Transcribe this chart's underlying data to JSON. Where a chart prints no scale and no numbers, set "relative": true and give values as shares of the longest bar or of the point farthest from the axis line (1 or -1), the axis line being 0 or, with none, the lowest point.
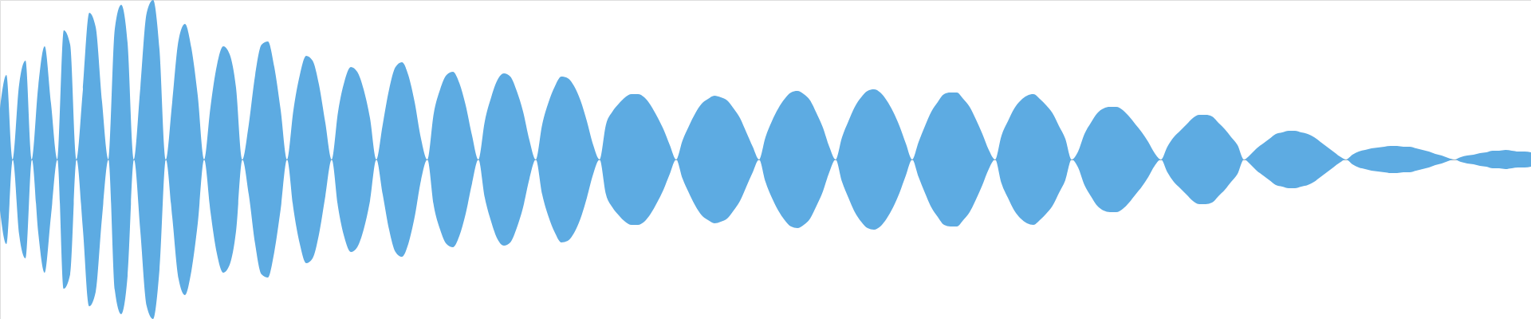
{
  "chart_data": {
    "type": "area",
    "relative": true,
    "categories": [
      null,
      null,
      null,
      null,
      null,
      null,
      null,
      null,
      null,
      null,
      null,
      null,
      null,
      null,
      null,
      null,
      null,
      null,
      null,
      null,
      null,
      null,
      null,
      null,
      null,
      null,
      null,
      null,
      null,
      null,
      null,
      null,
      null,
      null,
      null,
      null,
      null,
      null,
      null,
      null,
      null,
      null,
      null,
      null,
      null,
      null,
      null,
      null,
      null,
      null,
      null,
      null,
      null,
      null,
      null,
      null,
      null,
      null,
      null,
      null,
      null,
      null,
      null,
      null,
      null,
      null,
      null,
      null,
      null,
      null,
      null,
      null,
      null,
      null,
      null,
      null,
      null,
      null,
      null,
      null,
      null,
      null,
      null,
      null,
      null,
      null,
      null,
      null,
      null,
      null,
      null,
      null,
      null,
      null,
      null,
      null,
      null,
      null,
      null,
      null,
      null,
      null,
      null,
      null,
      null,
      null,
      null,
      null,
      null,
      null,
      null,
      null,
      null,
      null,
      null,
      null,
      null,
      null,
      null,
      null,
      null,
      null,
      null,
      null,
      null,
      null,
      null,
      null,
      null,
      null,
      null,
      null,
      null,
      null,
      null,
      null,
      null,
      null,
      null,
      null,
      null,
      null,
      null,
      null,
      null,
      null,
      null,
      null,
      null,
      null,
      null,
      null,
      null,
      null,
      null,
      null,
      null,
      null,
      null,
      null,
      null,
      null,
      null,
      null,
      null,
      null,
      null,
      null,
      null,
      null,
      null,
      null,
      null,
      null,
      null,
      null,
      null,
      null,
      null,
      null,
      null,
      null,
      null,
      null,
      null,
      null,
      null,
      null,
      null,
      null,
      null,
      null,
      null,
      null,
      null,
      null,
      null,
      null,
      null,
      null,
      null,
      null,
      null,
      null,
      null,
      null,
      null,
      null,
      null,
      null,
      null,
      null,
      null,
      null,
      null,
      null,
      null,
      null,
      null,
      null,
      null,
      null,
      null,
      null,
      null,
      null,
      null,
      null,
      null,
      null,
      null,
      null,
      null,
      null,
      null,
      null,
      null,
      null,
      null,
      null,
      null
    ],
    "series": [
      {
        "color": "#5dabe2",
        "values": [
          0.32,
          0.53,
          0,
          0.47,
          0.62,
          0,
          0.46,
          0.71,
          0.35,
          0,
          0.81,
          0.72,
          0,
          0.44,
          0.92,
          0.83,
          0.36,
          0,
          0.82,
          0.97,
          0.73,
          0,
          0.45,
          0.92,
          1,
          0.69,
          0,
          0.36,
          0.75,
          0.85,
          0.7,
          0.4,
          0,
          0.33,
          0.59,
          0.71,
          0.66,
          0.45,
          0,
          0.22,
          0.53,
          0.72,
          0.74,
          0.58,
          0.31,
          0,
          0.31,
          0.53,
          0.65,
          0.62,
          0.47,
          0.23,
          0,
          0.3,
          0.49,
          0.58,
          0.55,
          0.44,
          0.26,
          0,
          0.22,
          0.44,
          0.58,
          0.61,
          0.53,
          0.36,
          0.13,
          0,
          0.29,
          0.44,
          0.53,
          0.55,
          0.48,
          0.34,
          0.15,
          0,
          0.24,
          0.39,
          0.5,
          0.54,
          0.52,
          0.43,
          0.3,
          0.12,
          0,
          0.22,
          0.36,
          0.46,
          0.52,
          0.51,
          0.46,
          0.37,
          0.24,
          0.09,
          0,
          0.22,
          0.3,
          0.35,
          0.39,
          0.41,
          0.41,
          0.39,
          0.34,
          0.27,
          0.19,
          0.09,
          0,
          0.12,
          0.21,
          0.29,
          0.35,
          0.38,
          0.4,
          0.39,
          0.37,
          0.32,
          0.26,
          0.17,
          0.08,
          0,
          0.14,
          0.24,
          0.32,
          0.38,
          0.42,
          0.43,
          0.41,
          0.37,
          0.29,
          0.2,
          0.08,
          0,
          0.14,
          0.24,
          0.33,
          0.39,
          0.43,
          0.44,
          0.42,
          0.37,
          0.3,
          0.21,
          0.1,
          0,
          0.11,
          0.21,
          0.3,
          0.36,
          0.41,
          0.42,
          0.42,
          0.38,
          0.33,
          0.25,
          0.16,
          0.06,
          0,
          0.15,
          0.24,
          0.32,
          0.37,
          0.4,
          0.41,
          0.38,
          0.34,
          0.29,
          0.21,
          0.13,
          0,
          0.05,
          0.16,
          0.23,
          0.29,
          0.32,
          0.33,
          0.33,
          0.31,
          0.27,
          0.22,
          0.17,
          0.11,
          0.04,
          0,
          0.08,
          0.14,
          0.18,
          0.22,
          0.26,
          0.28,
          0.28,
          0.27,
          0.23,
          0.19,
          0.14,
          0.09,
          0,
          0.03,
          0.07,
          0.1,
          0.13,
          0.16,
          0.17,
          0.18,
          0.18,
          0.17,
          0.16,
          0.14,
          0.11,
          0.08,
          0.05,
          0.02,
          0,
          0.03,
          0.05,
          0.06,
          0.07,
          0.075,
          0.08,
          0.085,
          0.085,
          0.08,
          0.08,
          0.07,
          0.06,
          0.05,
          0.035,
          0.025,
          0.01,
          0,
          0.015,
          0.025,
          0.03,
          0.04,
          0.045,
          0.055,
          0.055,
          0.06,
          0.055,
          0.05,
          0.05,
          0.045
        ]
      },
      {
        "color": "#5dabe2",
        "values": [
          -0.32,
          -0.53,
          0,
          -0.47,
          -0.62,
          0,
          -0.46,
          -0.71,
          -0.35,
          0,
          -0.81,
          -0.72,
          0,
          -0.44,
          -0.92,
          -0.83,
          -0.36,
          0,
          -0.82,
          -0.97,
          -0.73,
          0,
          -0.45,
          -0.92,
          -1,
          -0.69,
          0,
          -0.36,
          -0.75,
          -0.85,
          -0.7,
          -0.4,
          0,
          -0.33,
          -0.59,
          -0.71,
          -0.66,
          -0.45,
          0,
          -0.22,
          -0.53,
          -0.72,
          -0.74,
          -0.58,
          -0.31,
          0,
          -0.31,
          -0.53,
          -0.65,
          -0.62,
          -0.47,
          -0.23,
          0,
          -0.3,
          -0.49,
          -0.58,
          -0.55,
          -0.44,
          -0.26,
          0,
          -0.22,
          -0.44,
          -0.58,
          -0.61,
          -0.53,
          -0.36,
          -0.13,
          0,
          -0.29,
          -0.44,
          -0.53,
          -0.55,
          -0.48,
          -0.34,
          -0.15,
          0,
          -0.24,
          -0.39,
          -0.5,
          -0.54,
          -0.52,
          -0.43,
          -0.3,
          -0.12,
          0,
          -0.22,
          -0.36,
          -0.46,
          -0.52,
          -0.51,
          -0.46,
          -0.37,
          -0.24,
          -0.09,
          0,
          -0.22,
          -0.3,
          -0.35,
          -0.39,
          -0.41,
          -0.41,
          -0.39,
          -0.34,
          -0.27,
          -0.19,
          -0.09,
          0,
          -0.12,
          -0.21,
          -0.29,
          -0.35,
          -0.38,
          -0.4,
          -0.39,
          -0.37,
          -0.32,
          -0.26,
          -0.17,
          -0.08,
          0,
          -0.14,
          -0.24,
          -0.32,
          -0.38,
          -0.42,
          -0.43,
          -0.41,
          -0.37,
          -0.29,
          -0.2,
          -0.08,
          0,
          -0.14,
          -0.24,
          -0.33,
          -0.39,
          -0.43,
          -0.44,
          -0.42,
          -0.37,
          -0.3,
          -0.21,
          -0.1,
          0,
          -0.11,
          -0.21,
          -0.3,
          -0.36,
          -0.41,
          -0.42,
          -0.42,
          -0.38,
          -0.33,
          -0.25,
          -0.16,
          -0.06,
          0,
          -0.15,
          -0.24,
          -0.32,
          -0.37,
          -0.4,
          -0.41,
          -0.38,
          -0.34,
          -0.29,
          -0.21,
          -0.13,
          0,
          -0.05,
          -0.16,
          -0.23,
          -0.29,
          -0.32,
          -0.33,
          -0.33,
          -0.31,
          -0.27,
          -0.22,
          -0.17,
          -0.11,
          -0.04,
          0,
          -0.08,
          -0.14,
          -0.18,
          -0.22,
          -0.26,
          -0.28,
          -0.28,
          -0.27,
          -0.23,
          -0.19,
          -0.14,
          -0.09,
          0,
          -0.03,
          -0.07,
          -0.1,
          -0.13,
          -0.16,
          -0.17,
          -0.18,
          -0.18,
          -0.17,
          -0.16,
          -0.14,
          -0.11,
          -0.08,
          -0.05,
          -0.02,
          0,
          -0.03,
          -0.05,
          -0.06,
          -0.07,
          -0.075,
          -0.08,
          -0.085,
          -0.085,
          -0.08,
          -0.08,
          -0.07,
          -0.06,
          -0.05,
          -0.035,
          -0.025,
          -0.01,
          0,
          -0.015,
          -0.025,
          -0.03,
          -0.04,
          -0.045,
          -0.055,
          -0.055,
          -0.06,
          -0.055,
          -0.05,
          -0.05,
          -0.045
        ]
      }
    ]
  }
}
